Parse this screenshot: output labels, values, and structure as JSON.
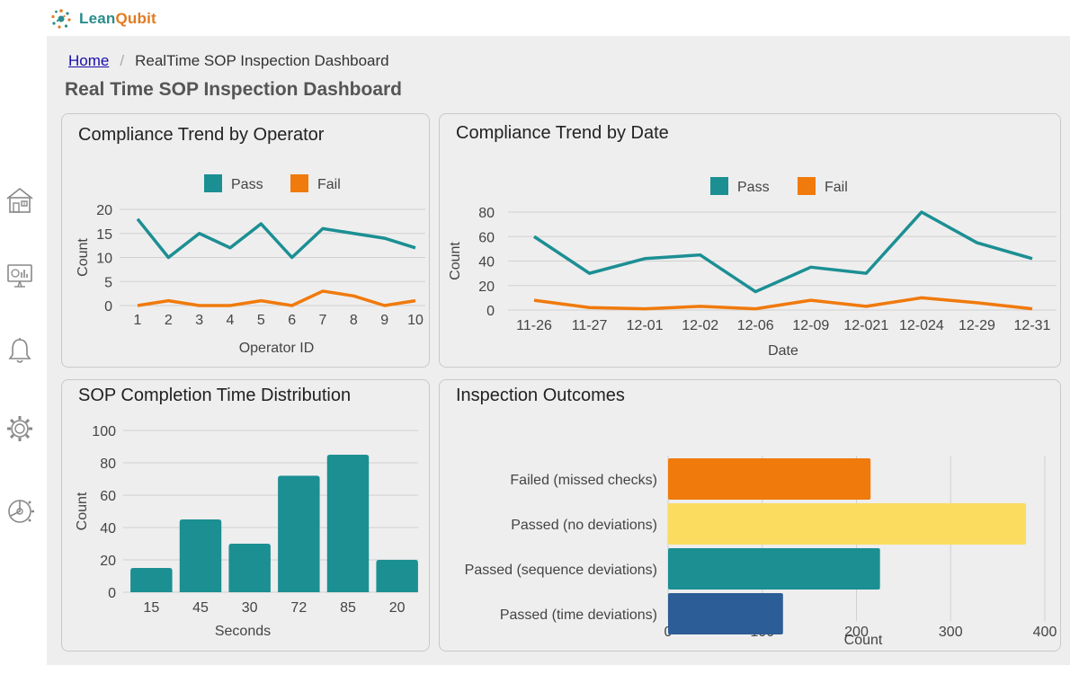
{
  "brand": {
    "name_part1": "Lean",
    "name_part2": "Qubit"
  },
  "sidebar": {
    "items": [
      {
        "icon": "home-icon"
      },
      {
        "icon": "monitor-chart-icon"
      },
      {
        "icon": "bell-icon"
      },
      {
        "icon": "gear-icon"
      },
      {
        "icon": "dial-gear-icon"
      }
    ]
  },
  "breadcrumb": {
    "home": "Home",
    "separator": "/",
    "current": "RealTime SOP Inspection Dashboard"
  },
  "page_title": "Real Time SOP Inspection Dashboard",
  "colors": {
    "pass": "#1c8f93",
    "fail": "#f07a0c",
    "bar": "#1c8f93",
    "grid": "#d0d0d0",
    "accent": "#2a8c8c"
  },
  "cards": {
    "operator": {
      "title": "Compliance Trend by Operator"
    },
    "date": {
      "title": "Compliance Trend by Date"
    },
    "completion": {
      "title": "SOP Completion Time Distribution"
    },
    "outcomes": {
      "title": "Inspection Outcomes"
    }
  },
  "chart_data": [
    {
      "id": "operator",
      "type": "line",
      "title": "Compliance Trend by Operator",
      "xlabel": "Operator ID",
      "ylabel": "Count",
      "ylim": [
        0,
        20
      ],
      "yticks": [
        0,
        5,
        10,
        15,
        20
      ],
      "legend_position": "top-center",
      "grid": true,
      "x": [
        "1",
        "2",
        "3",
        "4",
        "5",
        "6",
        "7",
        "8",
        "9",
        "10"
      ],
      "series": [
        {
          "name": "Pass",
          "color": "#1c8f93",
          "values": [
            18,
            10,
            15,
            12,
            17,
            10,
            16,
            15,
            14,
            12
          ]
        },
        {
          "name": "Fail",
          "color": "#f07a0c",
          "values": [
            0,
            1,
            0,
            0,
            1,
            0,
            3,
            2,
            0,
            1
          ]
        }
      ]
    },
    {
      "id": "date",
      "type": "line",
      "title": "Compliance Trend by Date",
      "xlabel": "Date",
      "ylabel": "Count",
      "ylim": [
        0,
        80
      ],
      "yticks": [
        0,
        20,
        40,
        60,
        80
      ],
      "legend_position": "top-center",
      "grid": true,
      "x": [
        "11-26",
        "11-27",
        "12-01",
        "12-02",
        "12-06",
        "12-09",
        "12-021",
        "12-024",
        "12-29",
        "12-31"
      ],
      "series": [
        {
          "name": "Pass",
          "color": "#1c8f93",
          "values": [
            60,
            30,
            42,
            45,
            15,
            35,
            30,
            80,
            55,
            42
          ]
        },
        {
          "name": "Fail",
          "color": "#f07a0c",
          "values": [
            8,
            2,
            1,
            3,
            1,
            8,
            3,
            10,
            6,
            1
          ]
        }
      ]
    },
    {
      "id": "completion",
      "type": "bar",
      "title": "SOP Completion Time Distribution",
      "xlabel": "Seconds",
      "ylabel": "Count",
      "ylim": [
        0,
        100
      ],
      "yticks": [
        0,
        20,
        40,
        60,
        80,
        100
      ],
      "grid": true,
      "categories": [
        "15",
        "45",
        "30",
        "72",
        "85",
        "20"
      ],
      "values": [
        15,
        45,
        30,
        72,
        85,
        20
      ],
      "color": "#1c8f93"
    },
    {
      "id": "outcomes",
      "type": "bar",
      "orientation": "horizontal",
      "title": "Inspection Outcomes",
      "xlabel": "Count",
      "ylabel": "",
      "xlim": [
        0,
        400
      ],
      "xticks": [
        0,
        100,
        200,
        300,
        400
      ],
      "grid": true,
      "categories": [
        "Failed (missed checks)",
        "Passed (no deviations)",
        "Passed (sequence deviations)",
        "Passed (time deviations)"
      ],
      "values": [
        215,
        380,
        225,
        122
      ],
      "colors": [
        "#f07a0c",
        "#fcdc5e",
        "#1c8f93",
        "#2c5d96"
      ]
    }
  ]
}
